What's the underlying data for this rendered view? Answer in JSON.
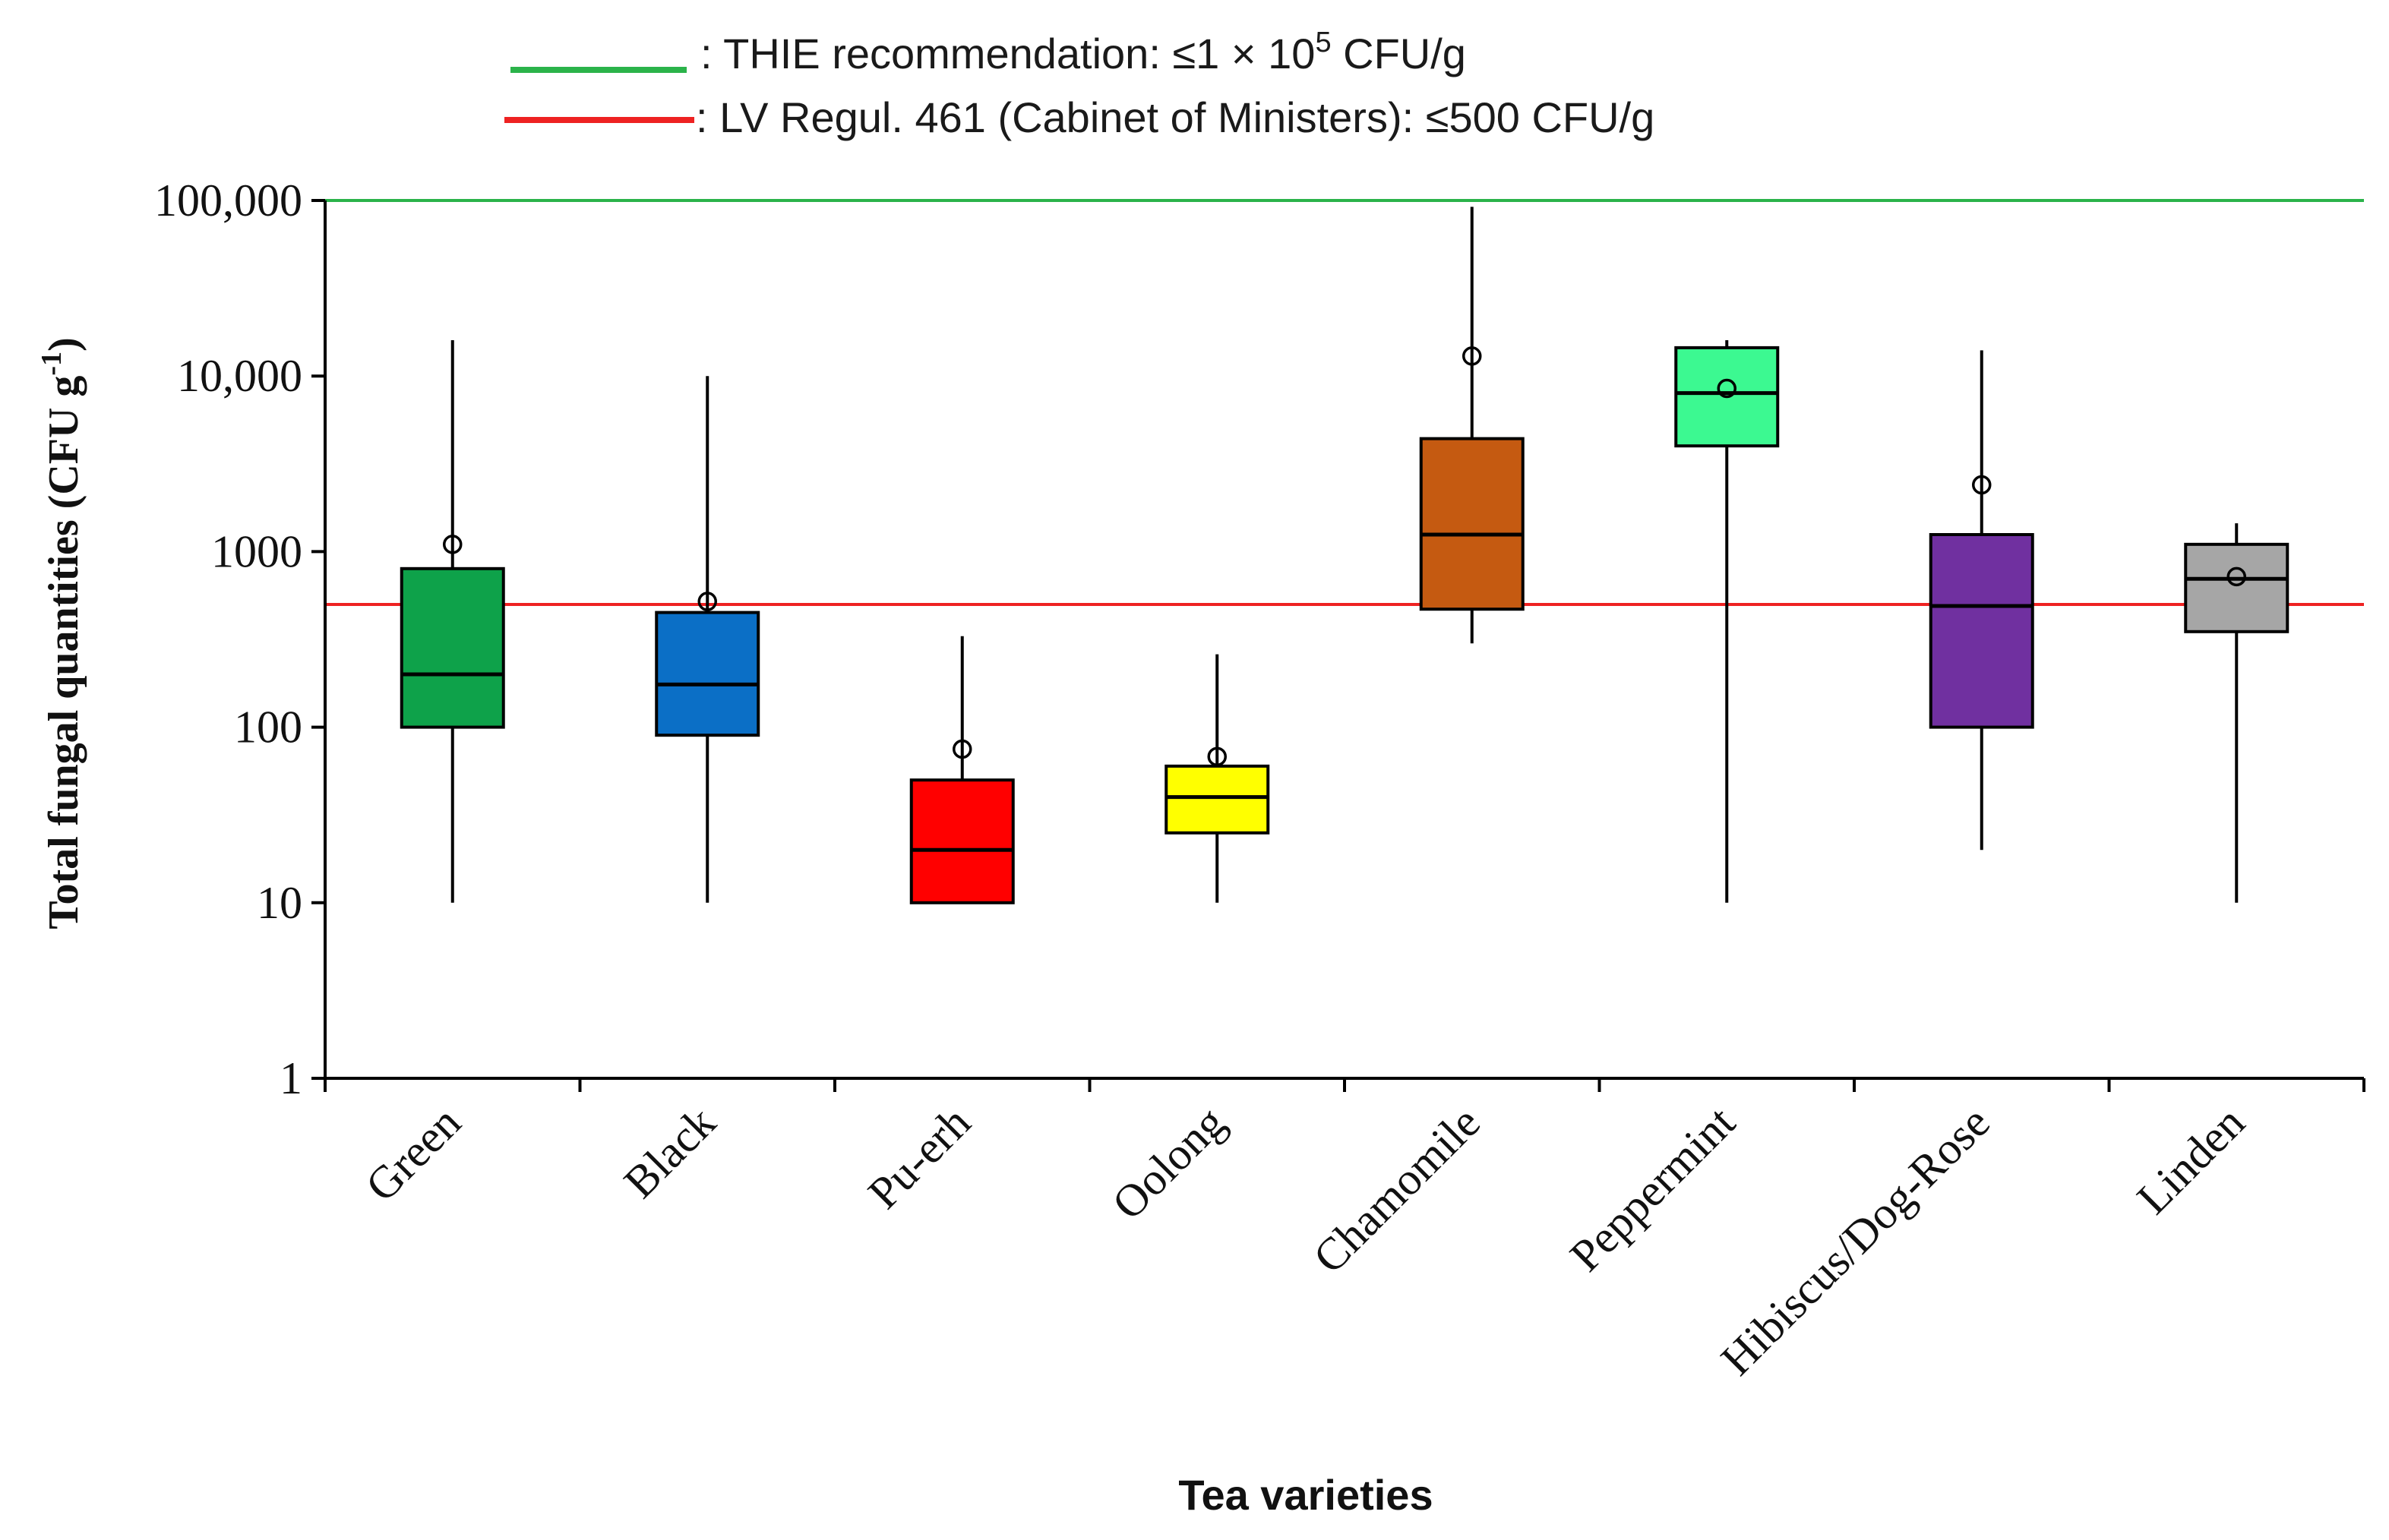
{
  "chart_data": {
    "type": "box",
    "xlabel": "Tea varieties",
    "ylabel": "Total fungal quantities  (CFU g",
    "ylabel_sup": "-1",
    "ylabel_end": ")",
    "yscale": "log",
    "ylim": [
      1,
      100000
    ],
    "yticks": [
      1,
      10,
      100,
      1000,
      10000,
      100000
    ],
    "ytick_labels": [
      "1",
      "10",
      "100",
      "1000",
      "10,000",
      "100,000"
    ],
    "reference_lines": [
      {
        "label_prefix": ": THIE recommendation: ≤1 × 10",
        "label_sup": "5",
        "label_suffix": " CFU/g",
        "value": 100000,
        "color": "#2bb34a"
      },
      {
        "label_prefix": ":  LV Regul. 461 (Cabinet of Ministers): ≤500 CFU/g",
        "label_sup": "",
        "label_suffix": "",
        "value": 500,
        "color": "#ee2222"
      }
    ],
    "categories": [
      "Green",
      "Black",
      "Pu-erh",
      "Oolong",
      "Chamomile",
      "Peppermint",
      "Hibiscus/Dog-Rose",
      "Linden"
    ],
    "boxes": [
      {
        "min": 10,
        "q1": 100,
        "median": 200,
        "q3": 800,
        "max": 16000,
        "mean": 1100,
        "color": "#0ea24a"
      },
      {
        "min": 10,
        "q1": 90,
        "median": 175,
        "q3": 450,
        "max": 10000,
        "mean": 520,
        "color": "#0b6fc6"
      },
      {
        "min": 10,
        "q1": 10,
        "median": 20,
        "q3": 50,
        "max": 330,
        "mean": 75,
        "color": "#ff0000"
      },
      {
        "min": 10,
        "q1": 25,
        "median": 40,
        "q3": 60,
        "max": 260,
        "mean": 68,
        "color": "#ffff00"
      },
      {
        "min": 300,
        "q1": 470,
        "median": 1250,
        "q3": 4400,
        "max": 92000,
        "mean": 13000,
        "color": "#c55a11"
      },
      {
        "min": 10,
        "q1": 4000,
        "median": 8000,
        "q3": 14500,
        "max": 16000,
        "mean": 8500,
        "color": "#3cf991"
      },
      {
        "min": 20,
        "q1": 100,
        "median": 490,
        "q3": 1250,
        "max": 14000,
        "mean": 2400,
        "color": "#7030a0"
      },
      {
        "min": 10,
        "q1": 350,
        "median": 700,
        "q3": 1100,
        "max": 1450,
        "mean": 720,
        "color": "#a6a6a6"
      }
    ],
    "grid": false,
    "legend_position": "top-center"
  }
}
